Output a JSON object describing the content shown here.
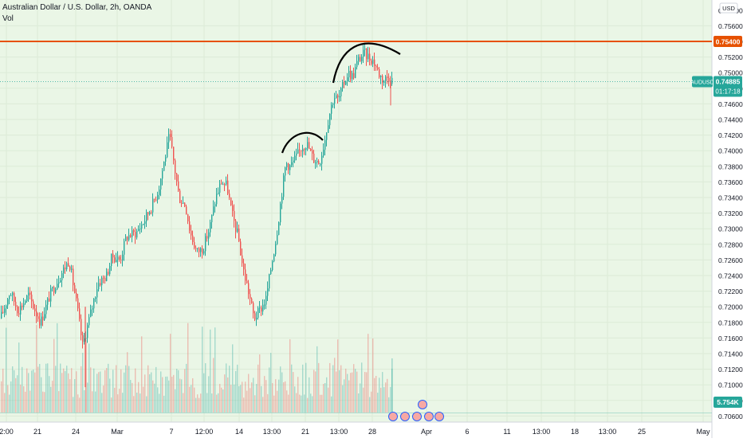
{
  "header": {
    "title": "Australian Dollar / U.S. Dollar, 2h, OANDA",
    "volume_label": "Vol",
    "currency": "USD"
  },
  "price_axis": {
    "labels": [
      "0.75600",
      "0.75400",
      "0.75200",
      "0.75000",
      "0.74800",
      "0.74600",
      "0.74400",
      "0.74200",
      "0.74000",
      "0.73800",
      "0.73600",
      "0.73400",
      "0.73200",
      "0.73000",
      "0.72800",
      "0.72600",
      "0.72400",
      "0.72200",
      "0.72000",
      "0.71800",
      "0.71600",
      "0.71400",
      "0.71200",
      "0.71000",
      "0.70800",
      "0.70600"
    ],
    "top_label": "0.75800"
  },
  "time_axis": {
    "labels": [
      "2:00",
      "21",
      "24",
      "Mar",
      "7",
      "12:00",
      "14",
      "13:00",
      "21",
      "13:00",
      "28",
      "Apr",
      "6",
      "11",
      "13:00",
      "18",
      "13:00",
      "25",
      "May"
    ]
  },
  "badges": {
    "resistance": "0.75400",
    "symbol": "AUDUSD",
    "last_price": "0.74885",
    "countdown": "01:17:18",
    "volume": "5.754K"
  },
  "colors": {
    "up": "#26a69a",
    "down": "#ef5350",
    "resistance_line": "#e65100",
    "background": "#eaf6e6",
    "drawing": "#000000"
  },
  "chart_data": {
    "type": "candlestick",
    "title": "Australian Dollar / U.S. Dollar, 2h, OANDA",
    "ylim": [
      0.7055,
      0.7585
    ],
    "resistance": 0.754,
    "last_price": 0.74885,
    "x": [
      0,
      2,
      4,
      6,
      8,
      10,
      12,
      14,
      16,
      18,
      20,
      22,
      24,
      26,
      28,
      30,
      32,
      34,
      36,
      38,
      40,
      42,
      44,
      46,
      48
    ],
    "close": [
      0.7185,
      0.7205,
      0.7215,
      0.7195,
      0.7175,
      0.7225,
      0.7235,
      0.7198,
      0.7178,
      0.7235,
      0.7255,
      0.726,
      0.7245,
      0.7222,
      0.726,
      0.7268,
      0.7288,
      0.7295,
      0.727,
      0.728,
      0.7315,
      0.7338,
      0.735,
      0.742,
      0.741
    ],
    "annotations": [
      "rounded top near 0.7420",
      "rounded top near 0.7540"
    ]
  }
}
